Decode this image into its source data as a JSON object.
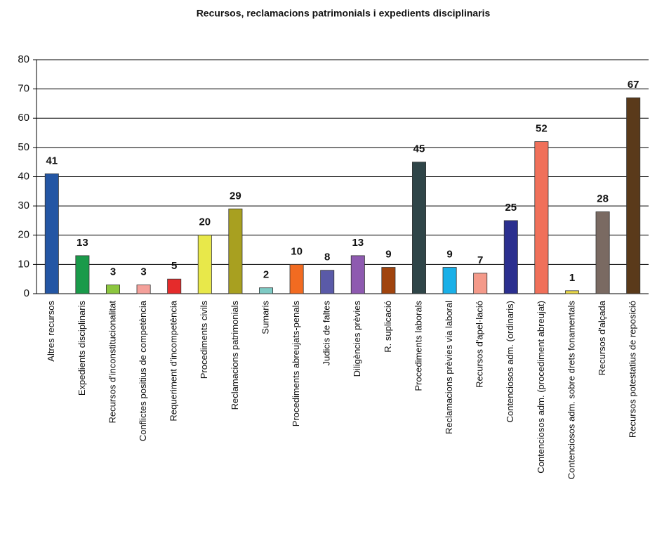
{
  "chart_data": {
    "type": "bar",
    "title": "Recursos, reclamacions patrimonials i expedients disciplinaris",
    "categories": [
      "Altres recursos",
      "Expedients disciplinaris",
      "Recursos d'inconstitucionalitat",
      "Conflictes positius de competència",
      "Requeriment d'incompetència",
      "Procediments civils",
      "Reclamacions patrimonials",
      "Sumaris",
      "Procediments abreujats-penals",
      "Judicis de faltes",
      "Diligències prèvies",
      "R. suplicació",
      "Procediments laborals",
      "Reclamacions prèvies via laboral",
      "Recursos d'apel·lació",
      "Contenciosos adm. (ordinaris)",
      "Contenciosos adm. (procediment abreujat)",
      "Contenciosos adm. sobre drets fonamentals",
      "Recursos d'alçada",
      "Recursos potestatius de reposició"
    ],
    "values": [
      41,
      13,
      3,
      3,
      5,
      20,
      29,
      2,
      10,
      8,
      13,
      9,
      45,
      9,
      7,
      25,
      52,
      1,
      28,
      67
    ],
    "colors": [
      "#2456a4",
      "#1a9a4a",
      "#8cc63f",
      "#f4a09a",
      "#e52b2b",
      "#e8e84a",
      "#a8a020",
      "#7ecac4",
      "#f26b21",
      "#5a5aa8",
      "#8e5ab0",
      "#a0440e",
      "#2f4548",
      "#1ab0e8",
      "#f49a8a",
      "#2b2f8f",
      "#f0705a",
      "#e8d84a",
      "#7a6a62",
      "#5a3a1a"
    ],
    "ylim": [
      0,
      80
    ],
    "yticks": [
      0,
      10,
      20,
      30,
      40,
      50,
      60,
      70,
      80
    ],
    "grid": true
  }
}
